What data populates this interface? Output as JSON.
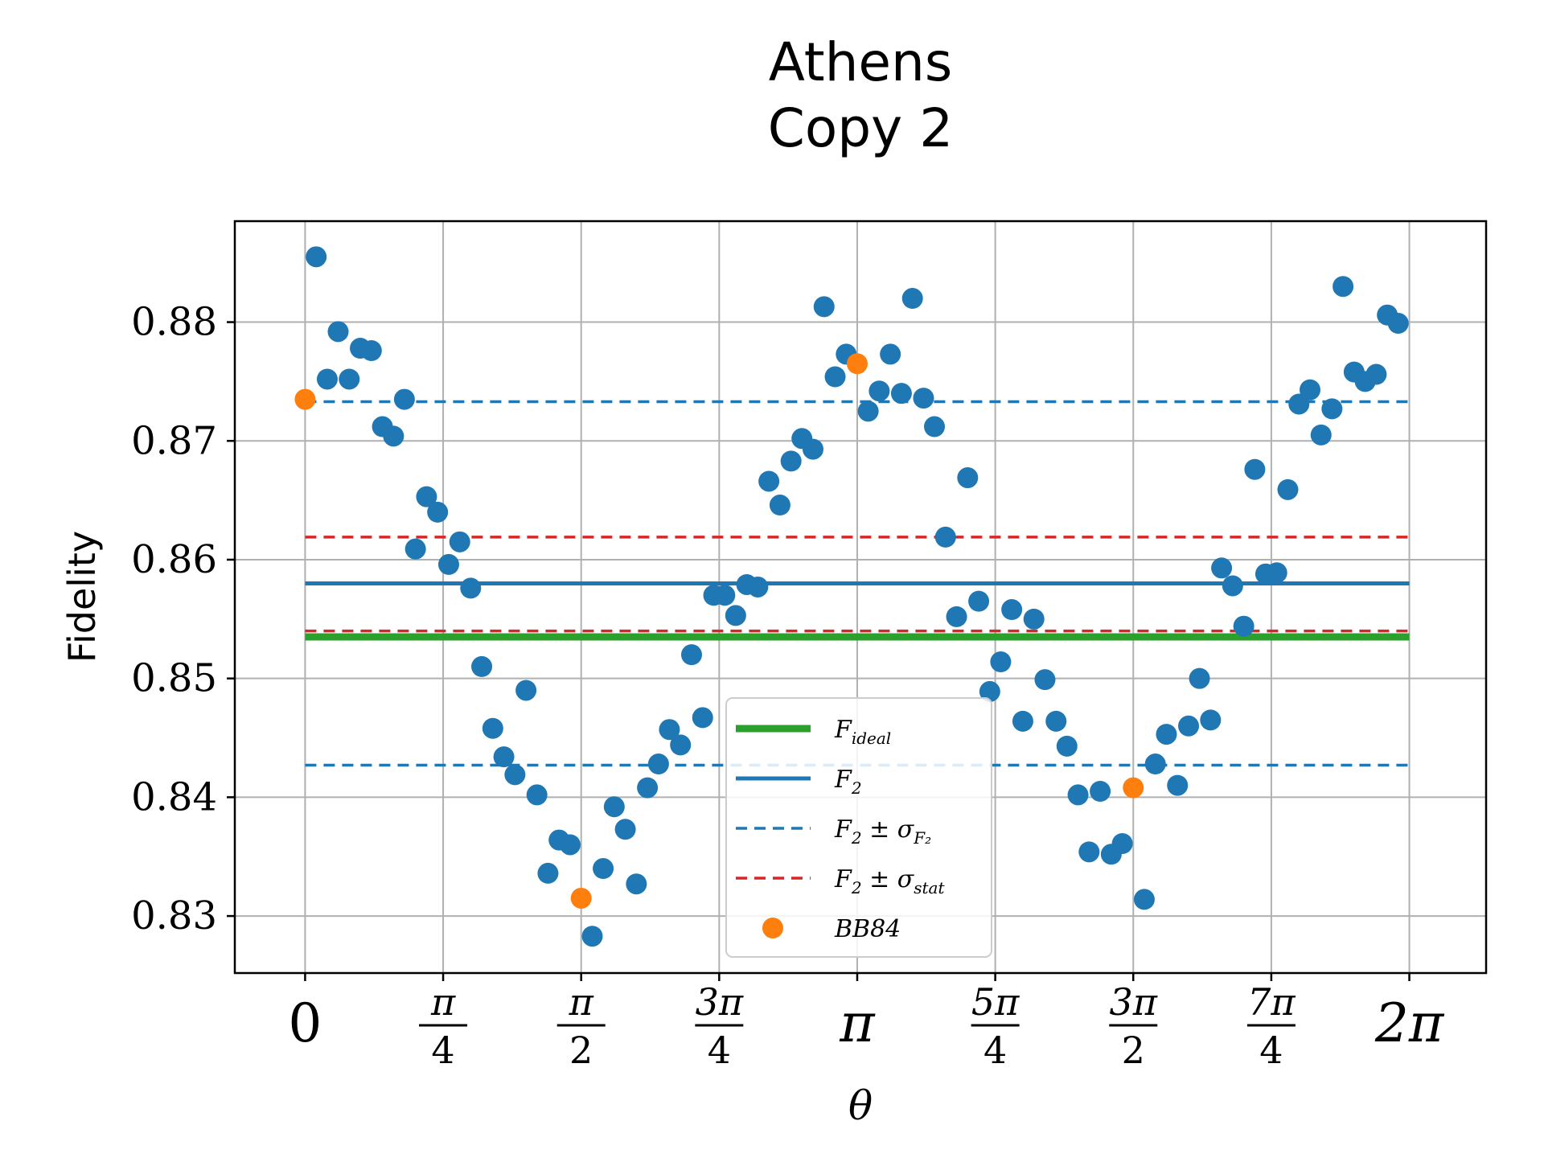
{
  "chart_data": {
    "type": "scatter",
    "title": [
      "Athens",
      "Copy 2"
    ],
    "xlabel": "θ",
    "ylabel": "Fidelity",
    "xlim": [
      -0.4,
      6.72
    ],
    "ylim": [
      0.8252,
      0.8885
    ],
    "grid": true,
    "legend_position": "lower-center",
    "xticks": [
      {
        "value": 0,
        "label": "0"
      },
      {
        "value": 0.7854,
        "num": "π",
        "den": "4"
      },
      {
        "value": 1.5708,
        "num": "π",
        "den": "2"
      },
      {
        "value": 2.3562,
        "num": "3π",
        "den": "4"
      },
      {
        "value": 3.1416,
        "label": "π"
      },
      {
        "value": 3.927,
        "num": "5π",
        "den": "4"
      },
      {
        "value": 4.7124,
        "num": "3π",
        "den": "2"
      },
      {
        "value": 5.4978,
        "num": "7π",
        "den": "4"
      },
      {
        "value": 6.2832,
        "label": "2π"
      }
    ],
    "yticks": [
      {
        "value": 0.83,
        "label": "0.83"
      },
      {
        "value": 0.84,
        "label": "0.84"
      },
      {
        "value": 0.85,
        "label": "0.85"
      },
      {
        "value": 0.86,
        "label": "0.86"
      },
      {
        "value": 0.87,
        "label": "0.87"
      },
      {
        "value": 0.88,
        "label": "0.88"
      }
    ],
    "lines": [
      {
        "name": "F_ideal",
        "y": 0.8535,
        "color": "#2ca02c",
        "style": "solid",
        "width": 9
      },
      {
        "name": "F_2",
        "y": 0.858,
        "color": "#1f77b4",
        "style": "solid",
        "width": 5
      },
      {
        "name": "F_2 ± σ_F2",
        "y": 0.8733,
        "color": "#1f77b4",
        "style": "dashed",
        "width": 3.5
      },
      {
        "name": "F_2 ± σ_F2",
        "y": 0.8427,
        "color": "#1f77b4",
        "style": "dashed",
        "width": 3.5
      },
      {
        "name": "F_2 ± σ_stat",
        "y": 0.8619,
        "color": "#d62728",
        "style": "dashed",
        "width": 3.5
      },
      {
        "name": "F_2 ± σ_stat",
        "y": 0.854,
        "color": "#d62728",
        "style": "dashed",
        "width": 3.5
      }
    ],
    "line_x_range": [
      0,
      6.2832
    ],
    "series": [
      {
        "name": "data",
        "color": "#1f77b4",
        "points": [
          [
            0.063,
            0.8855
          ],
          [
            0.126,
            0.8752
          ],
          [
            0.188,
            0.8792
          ],
          [
            0.251,
            0.8752
          ],
          [
            0.314,
            0.8778
          ],
          [
            0.377,
            0.8776
          ],
          [
            0.44,
            0.8712
          ],
          [
            0.503,
            0.8704
          ],
          [
            0.565,
            0.8735
          ],
          [
            0.628,
            0.8609
          ],
          [
            0.691,
            0.8653
          ],
          [
            0.754,
            0.864
          ],
          [
            0.817,
            0.8596
          ],
          [
            0.88,
            0.8615
          ],
          [
            0.942,
            0.8576
          ],
          [
            1.005,
            0.851
          ],
          [
            1.068,
            0.8458
          ],
          [
            1.131,
            0.8434
          ],
          [
            1.194,
            0.8419
          ],
          [
            1.257,
            0.849
          ],
          [
            1.319,
            0.8402
          ],
          [
            1.382,
            0.8336
          ],
          [
            1.445,
            0.8364
          ],
          [
            1.508,
            0.836
          ],
          [
            1.634,
            0.8283
          ],
          [
            1.696,
            0.834
          ],
          [
            1.759,
            0.8392
          ],
          [
            1.822,
            0.8373
          ],
          [
            1.885,
            0.8327
          ],
          [
            1.948,
            0.8408
          ],
          [
            2.011,
            0.8428
          ],
          [
            2.073,
            0.8457
          ],
          [
            2.136,
            0.8444
          ],
          [
            2.199,
            0.852
          ],
          [
            2.262,
            0.8467
          ],
          [
            2.325,
            0.857
          ],
          [
            2.388,
            0.857
          ],
          [
            2.45,
            0.8553
          ],
          [
            2.513,
            0.8579
          ],
          [
            2.576,
            0.8577
          ],
          [
            2.639,
            0.8666
          ],
          [
            2.702,
            0.8646
          ],
          [
            2.765,
            0.8683
          ],
          [
            2.827,
            0.8702
          ],
          [
            2.89,
            0.8693
          ],
          [
            2.953,
            0.8813
          ],
          [
            3.016,
            0.8754
          ],
          [
            3.079,
            0.8773
          ],
          [
            3.204,
            0.8725
          ],
          [
            3.267,
            0.8742
          ],
          [
            3.33,
            0.8773
          ],
          [
            3.393,
            0.874
          ],
          [
            3.456,
            0.882
          ],
          [
            3.519,
            0.8736
          ],
          [
            3.581,
            0.8712
          ],
          [
            3.644,
            0.8619
          ],
          [
            3.707,
            0.8552
          ],
          [
            3.77,
            0.8669
          ],
          [
            3.833,
            0.8565
          ],
          [
            3.896,
            0.8489
          ],
          [
            3.958,
            0.8514
          ],
          [
            4.021,
            0.8558
          ],
          [
            4.084,
            0.8464
          ],
          [
            4.147,
            0.855
          ],
          [
            4.21,
            0.8499
          ],
          [
            4.273,
            0.8464
          ],
          [
            4.335,
            0.8443
          ],
          [
            4.398,
            0.8402
          ],
          [
            4.461,
            0.8354
          ],
          [
            4.524,
            0.8405
          ],
          [
            4.587,
            0.8352
          ],
          [
            4.65,
            0.8361
          ],
          [
            4.775,
            0.8314
          ],
          [
            4.838,
            0.8428
          ],
          [
            4.901,
            0.8453
          ],
          [
            4.964,
            0.841
          ],
          [
            5.027,
            0.846
          ],
          [
            5.089,
            0.85
          ],
          [
            5.152,
            0.8465
          ],
          [
            5.215,
            0.8593
          ],
          [
            5.278,
            0.8578
          ],
          [
            5.341,
            0.8544
          ],
          [
            5.404,
            0.8676
          ],
          [
            5.466,
            0.8588
          ],
          [
            5.529,
            0.8589
          ],
          [
            5.592,
            0.8659
          ],
          [
            5.655,
            0.8731
          ],
          [
            5.718,
            0.8743
          ],
          [
            5.781,
            0.8705
          ],
          [
            5.843,
            0.8727
          ],
          [
            5.906,
            0.883
          ],
          [
            5.969,
            0.8758
          ],
          [
            6.032,
            0.875
          ],
          [
            6.095,
            0.8756
          ],
          [
            6.158,
            0.8806
          ],
          [
            6.22,
            0.8799
          ]
        ]
      },
      {
        "name": "BB84",
        "color": "#ff7f0e",
        "points": [
          [
            0,
            0.8735
          ],
          [
            1.5708,
            0.8315
          ],
          [
            3.1416,
            0.8765
          ],
          [
            4.7124,
            0.8408
          ]
        ]
      }
    ],
    "legend": [
      {
        "kind": "line",
        "color": "#2ca02c",
        "width": 9,
        "dash": "",
        "base": "F",
        "sub": "ideal",
        "tail": ""
      },
      {
        "kind": "line",
        "color": "#1f77b4",
        "width": 5,
        "dash": "",
        "base": "F",
        "sub": "2",
        "tail": ""
      },
      {
        "kind": "line",
        "color": "#1f77b4",
        "width": 3.5,
        "dash": "14 9",
        "base": "F",
        "sub": "2",
        "tail": " ± σ",
        "tailsub": "F₂"
      },
      {
        "kind": "line",
        "color": "#d62728",
        "width": 3.5,
        "dash": "14 9",
        "base": "F",
        "sub": "2",
        "tail": " ± σ",
        "tailsub": "stat"
      },
      {
        "kind": "dot",
        "color": "#ff7f0e",
        "base": "BB84",
        "sub": "",
        "tail": ""
      }
    ]
  }
}
